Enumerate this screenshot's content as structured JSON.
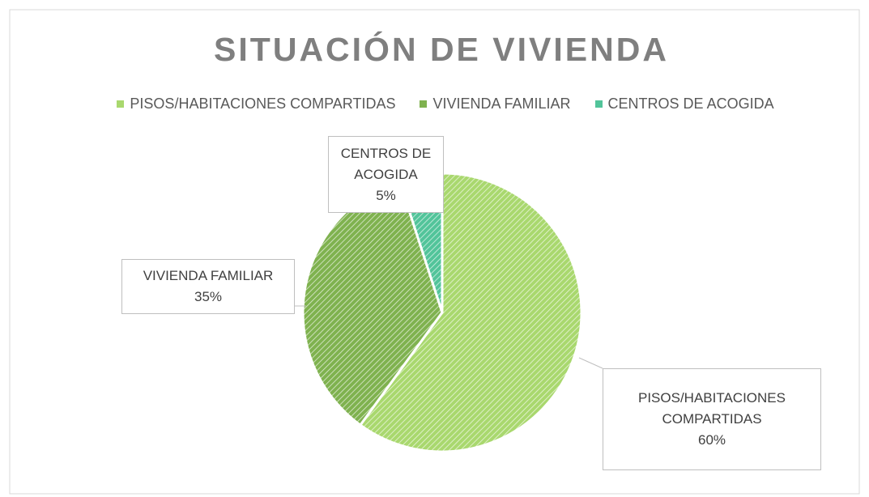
{
  "chart_data": {
    "type": "pie",
    "title": "SITUACIÓN DE VIVIENDA",
    "categories": [
      "PISOS/HABITACIONES COMPARTIDAS",
      "VIVIENDA FAMILIAR",
      "CENTROS DE ACOGIDA"
    ],
    "values": [
      60,
      35,
      5
    ],
    "value_labels": [
      "60%",
      "35%",
      "5%"
    ],
    "colors": [
      "#a9d86e",
      "#7fb24f",
      "#52c49a"
    ],
    "legend": "top"
  }
}
